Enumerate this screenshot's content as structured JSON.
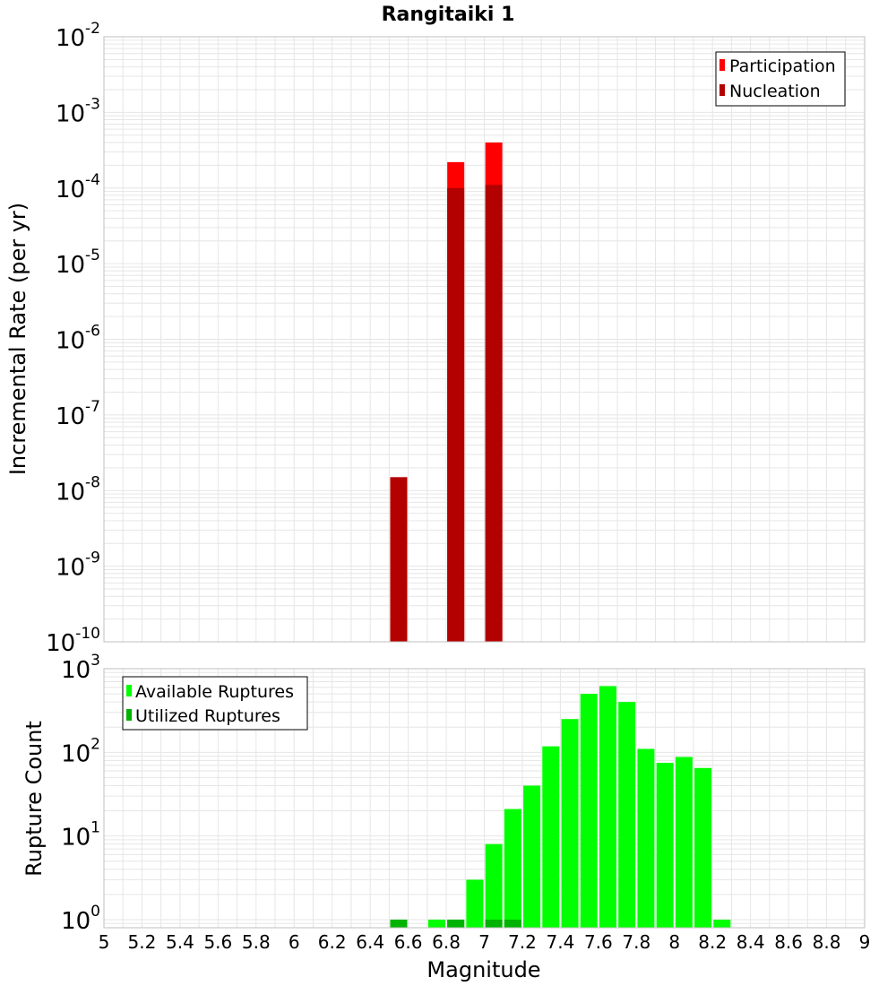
{
  "title": "Rangitaiki 1",
  "colors": {
    "participation": "#ff0000",
    "nucleation": "#b30000",
    "available": "#00ff00",
    "utilized": "#00b300",
    "grid": "#e6e6e6",
    "frame": "#bfbfbf"
  },
  "chart_data": [
    {
      "type": "bar",
      "title": "Rangitaiki 1",
      "xlabel": "Magnitude",
      "ylabel": "Incremental Rate (per yr)",
      "xlim": [
        5,
        9
      ],
      "ylim": [
        1e-10,
        0.01
      ],
      "yscale": "log",
      "y_tick_labels": [
        {
          "base": "10",
          "exp": "-10"
        },
        {
          "base": "10",
          "exp": "-9"
        },
        {
          "base": "10",
          "exp": "-8"
        },
        {
          "base": "10",
          "exp": "-7"
        },
        {
          "base": "10",
          "exp": "-6"
        },
        {
          "base": "10",
          "exp": "-5"
        },
        {
          "base": "10",
          "exp": "-4"
        },
        {
          "base": "10",
          "exp": "-3"
        },
        {
          "base": "10",
          "exp": "-2"
        }
      ],
      "grid": true,
      "legend_position": "top-right",
      "series": [
        {
          "name": "Participation",
          "x": [
            6.55,
            6.85,
            7.05
          ],
          "values": [
            1.5e-08,
            0.00022,
            0.0004
          ]
        },
        {
          "name": "Nucleation",
          "x": [
            6.55,
            6.85,
            7.05
          ],
          "values": [
            1.5e-08,
            0.0001,
            0.00011
          ]
        }
      ]
    },
    {
      "type": "bar",
      "xlabel": "Magnitude",
      "ylabel": "Rupture Count",
      "xlim": [
        5,
        9
      ],
      "ylim": [
        0.8,
        1000
      ],
      "yscale": "log",
      "y_tick_labels": [
        {
          "base": "10",
          "exp": "0"
        },
        {
          "base": "10",
          "exp": "1"
        },
        {
          "base": "10",
          "exp": "2"
        },
        {
          "base": "10",
          "exp": "3"
        }
      ],
      "x_tick_labels": [
        "5",
        "5.2",
        "5.4",
        "5.6",
        "5.8",
        "6",
        "6.2",
        "6.4",
        "6.6",
        "6.8",
        "7",
        "7.2",
        "7.4",
        "7.6",
        "7.8",
        "8",
        "8.2",
        "8.4",
        "8.6",
        "8.8",
        "9"
      ],
      "grid": true,
      "legend_position": "top-left",
      "series": [
        {
          "name": "Available Ruptures",
          "x": [
            6.55,
            6.75,
            6.85,
            6.95,
            7.05,
            7.15,
            7.25,
            7.35,
            7.45,
            7.55,
            7.65,
            7.75,
            7.85,
            7.95,
            8.05,
            8.15,
            8.25
          ],
          "values": [
            1,
            1,
            1,
            3,
            8,
            21,
            40,
            118,
            250,
            500,
            620,
            400,
            110,
            75,
            88,
            65,
            1
          ]
        },
        {
          "name": "Utilized Ruptures",
          "x": [
            6.55,
            6.85,
            7.05,
            7.15
          ],
          "values": [
            1,
            1,
            1,
            1
          ]
        }
      ]
    }
  ]
}
